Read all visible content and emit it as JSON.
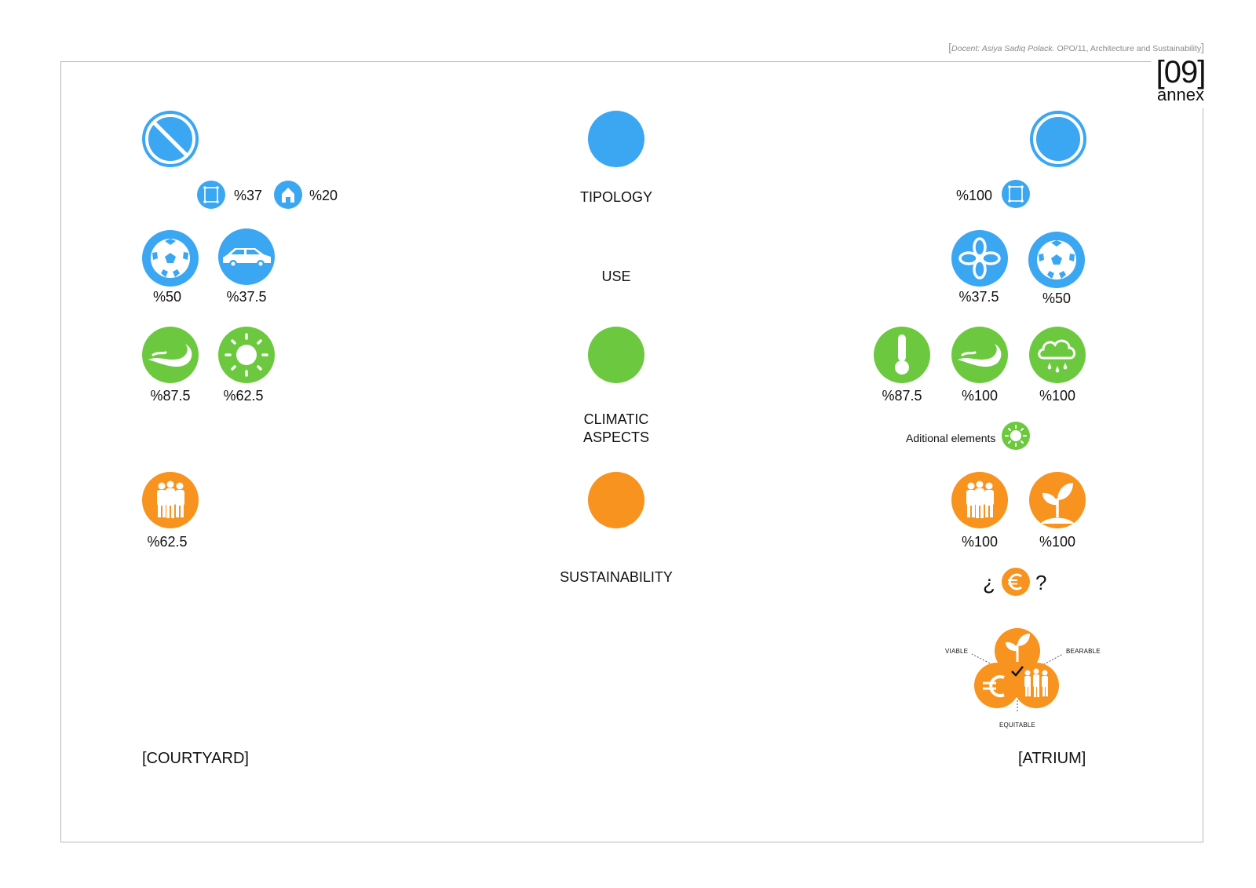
{
  "header": {
    "docent_label": "Docent: Asiya Sadiq Polack.",
    "course_text": "OPO/11, Architecture and Sustainability"
  },
  "page": {
    "number": "[09]",
    "label": "annex"
  },
  "categories": {
    "tipology": "TIPOLOGY",
    "use": "USE",
    "climatic_line1": "CLIMATIC",
    "climatic_line2": "ASPECTS",
    "sustainability": "SUSTAINABILITY"
  },
  "courtyard": {
    "title": "[COURTYARD]",
    "tipology": [
      {
        "icon": "square-plan-icon",
        "value": "%37"
      },
      {
        "icon": "house-icon",
        "value": "%20"
      }
    ],
    "use": [
      {
        "icon": "soccer-ball-icon",
        "value": "%50"
      },
      {
        "icon": "car-icon",
        "value": "%37.5"
      }
    ],
    "climatic": [
      {
        "icon": "wind-icon",
        "value": "%87.5"
      },
      {
        "icon": "sun-icon",
        "value": "%62.5"
      }
    ],
    "sustainability": [
      {
        "icon": "people-icon",
        "value": "%62.5"
      }
    ]
  },
  "atrium": {
    "title": "[ATRIUM]",
    "tipology": [
      {
        "icon": "square-plan-icon",
        "value": "%100"
      }
    ],
    "use": [
      {
        "icon": "flower-icon",
        "value": "%37.5"
      },
      {
        "icon": "soccer-ball-icon",
        "value": "%50"
      }
    ],
    "climatic": [
      {
        "icon": "thermometer-icon",
        "value": "%87.5"
      },
      {
        "icon": "wind-icon",
        "value": "%100"
      },
      {
        "icon": "rain-cloud-icon",
        "value": "%100"
      }
    ],
    "additional_label": "Aditional elements",
    "sustainability": [
      {
        "icon": "people-icon",
        "value": "%100"
      },
      {
        "icon": "plant-icon",
        "value": "%100"
      }
    ],
    "euro_open": "¿",
    "euro_close": "?",
    "venn": {
      "viable": "VIABLE",
      "bearable": "BEARABLE",
      "equitable": "EQUITABLE"
    }
  },
  "colors": {
    "blue": "#3ba6f2",
    "green": "#6cc93f",
    "orange": "#f7931e"
  }
}
